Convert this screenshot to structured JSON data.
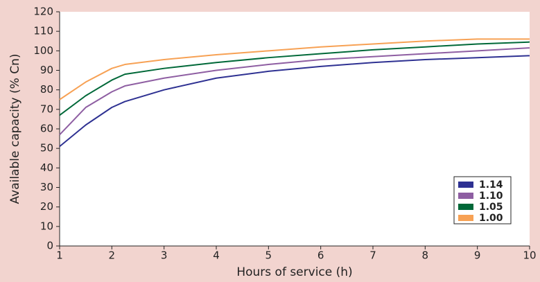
{
  "chart_data": {
    "type": "line",
    "x_label": "Hours of service (h)",
    "y_label": "Available capacity (% Cn)",
    "x": [
      1,
      1.5,
      2,
      2.25,
      3,
      4,
      5,
      6,
      7,
      8,
      9,
      10
    ],
    "series": [
      {
        "name": "1.14",
        "color": "#2e3192",
        "values": [
          51,
          62,
          71,
          74,
          80,
          86,
          89.5,
          92,
          94,
          95.5,
          96.5,
          97.5
        ]
      },
      {
        "name": "1.10",
        "color": "#8e5ea2",
        "values": [
          57,
          71,
          79,
          82,
          86,
          90,
          93,
          95.5,
          97,
          98.5,
          100,
          101.5
        ]
      },
      {
        "name": "1.05",
        "color": "#006838",
        "values": [
          67,
          77,
          85,
          88,
          91,
          94,
          96.5,
          98.5,
          100.5,
          102,
          103.5,
          104.5
        ]
      },
      {
        "name": "1.00",
        "color": "#f7a154",
        "values": [
          75,
          84,
          91,
          93,
          95.5,
          98,
          100,
          102,
          103.5,
          105,
          106,
          106
        ]
      }
    ],
    "xlim": [
      1,
      10
    ],
    "xticks": [
      1,
      2,
      3,
      4,
      5,
      6,
      7,
      8,
      9,
      10
    ],
    "ylim": [
      0,
      120
    ],
    "yticks": [
      0,
      10,
      20,
      30,
      40,
      50,
      60,
      70,
      80,
      90,
      100,
      110,
      120
    ],
    "legend": "lower right"
  }
}
